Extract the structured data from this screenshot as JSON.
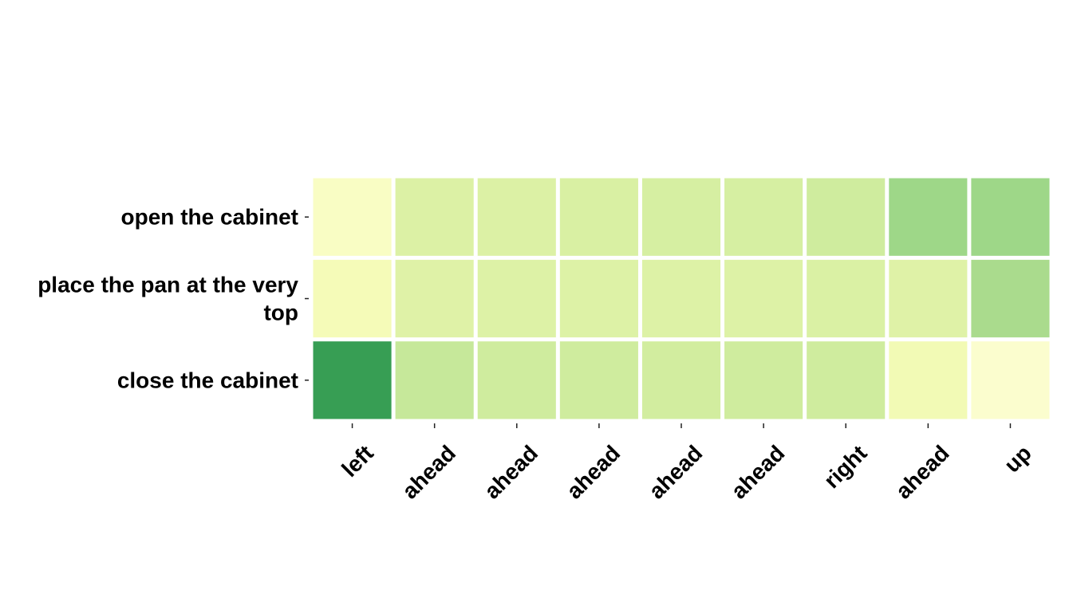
{
  "chart_data": {
    "type": "heatmap",
    "title": "",
    "xlabel": "",
    "ylabel": "",
    "x_categories": [
      "left",
      "ahead",
      "ahead",
      "ahead",
      "ahead",
      "ahead",
      "right",
      "ahead",
      "up"
    ],
    "y_categories": [
      [
        "open the cabinet"
      ],
      [
        "place the pan at the very",
        "top"
      ],
      [
        "close the cabinet"
      ]
    ],
    "values": [
      [
        0.08,
        0.3,
        0.3,
        0.32,
        0.33,
        0.33,
        0.36,
        0.56,
        0.56
      ],
      [
        0.14,
        0.28,
        0.29,
        0.29,
        0.29,
        0.29,
        0.31,
        0.28,
        0.52
      ],
      [
        0.95,
        0.4,
        0.36,
        0.36,
        0.35,
        0.36,
        0.36,
        0.16,
        0.04
      ]
    ],
    "colormap": "YlGn",
    "grid": false,
    "legend": "none"
  }
}
